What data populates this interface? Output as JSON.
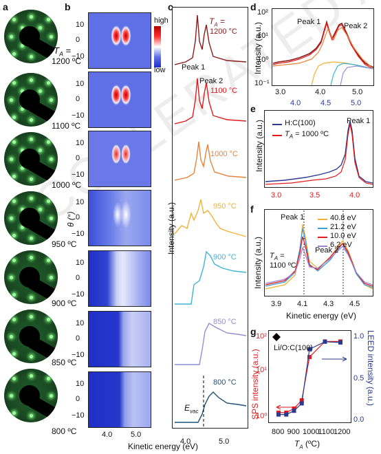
{
  "panels": {
    "a": "a",
    "b": "b",
    "c": "c",
    "d": "d",
    "e": "e",
    "f": "f",
    "g": "g"
  },
  "panel_a": {
    "ta_prefix": "T",
    "ta_sub": "A",
    "ta_eq": " =",
    "temps": [
      "1200 ºC",
      "1100 ºC",
      "1000 ºC",
      "950 ºC",
      "900 ºC",
      "850 ºC",
      "800 ºC"
    ]
  },
  "panel_b": {
    "colorbar_high": "high",
    "colorbar_low": "low",
    "yticks": [
      "10",
      "0",
      "−10"
    ],
    "ylabel": "θ (°)",
    "xticks": [
      "4.0",
      "5.0"
    ],
    "xlabel": "Kinetic energy (eV)"
  },
  "panel_c": {
    "ta_label": "T",
    "ta_sub": "A",
    "ta_eq": " =",
    "ta_first": "1200 °C",
    "temps": [
      "1100 °C",
      "1000 °C",
      "950 °C",
      "900 °C",
      "850 °C",
      "800 °C"
    ],
    "temp_colors": [
      "#8b1a1a",
      "#e31a1c",
      "#e8823a",
      "#f2b233",
      "#3fb3d6",
      "#8f8fd6",
      "#1f4e79"
    ],
    "peak1": "Peak 1",
    "peak2": "Peak 2",
    "evac": "E",
    "evac_sub": "vac",
    "ylabel": "Intensity (a.u.)",
    "xticks": [
      "4.0",
      "5.0"
    ],
    "xlabel": "Kinetic energy (eV)"
  },
  "panel_d": {
    "ylabel": "Intensity (a.u.)",
    "yticks": [
      "10²",
      "10¹",
      "10⁰",
      "10⁻¹"
    ],
    "xticks_bottom": [
      "3.0",
      "4.0",
      "5.0"
    ],
    "xticks_top": [
      "4.0",
      "4.5",
      "5.0"
    ],
    "peak1": "Peak 1",
    "peak2": "Peak 2"
  },
  "panel_e": {
    "ylabel": "Intensity (a.u.)",
    "legend": [
      "H:C(100)",
      "T"
    ],
    "legend2_sub": "A",
    "legend2_rest": " = 1000 ºC",
    "legend_colors": [
      "#2b3990",
      "#e31a1c"
    ],
    "peak1": "Peak 1",
    "xticks": [
      "3.0",
      "3.5",
      "4.0"
    ]
  },
  "panel_f": {
    "ylabel": "Intensity (a.u.)",
    "peak1": "Peak 1",
    "peak2": "Peak 2",
    "ta_line1": "T",
    "ta_sub": "A",
    "ta_eq": " =",
    "ta_line2": "1100 ºC",
    "legend": [
      "40.8 eV",
      "21.2 eV",
      "10.0 eV",
      "6.2 eV"
    ],
    "legend_colors": [
      "#f2b233",
      "#3a9fd6",
      "#e31a1c",
      "#a07fd0"
    ],
    "xticks": [
      "3.9",
      "4.1",
      "4.3",
      "4.5"
    ],
    "xlabel": "Kinetic energy (eV)"
  },
  "panel_g": {
    "ylabel_left": "SPS intensity (a.u.)",
    "ylabel_right": "LEED intensity (a.u.)",
    "yticks_left": [
      "10²",
      "10¹",
      "10⁰"
    ],
    "yticks_right": [
      "1.0",
      "0.5",
      "0.0"
    ],
    "xticks": [
      "800",
      "900",
      "1000",
      "1100",
      "1200"
    ],
    "xlabel": "T",
    "xlabel_sub": "A",
    "xlabel_unit": " (ºC)",
    "annotation": "Li/O:C(100)"
  },
  "chart_data": [
    {
      "type": "line",
      "panel": "g",
      "x": [
        800,
        850,
        900,
        950,
        1000,
        1100,
        1200
      ],
      "series": [
        {
          "name": "SPS intensity (a.u.)",
          "values": [
            1.0,
            1.0,
            1.3,
            2.2,
            35,
            95,
            95
          ],
          "color": "#e31a1c"
        },
        {
          "name": "LEED intensity (a.u.)",
          "values": [
            0.0,
            0.0,
            0.05,
            0.15,
            0.88,
            0.98,
            0.97
          ],
          "color": "#2b3990"
        }
      ],
      "xlabel": "T_A (ºC)",
      "ylim_left": [
        0.7,
        150
      ],
      "ylim_right": [
        -0.05,
        1.08
      ],
      "log_y_left": true
    }
  ]
}
